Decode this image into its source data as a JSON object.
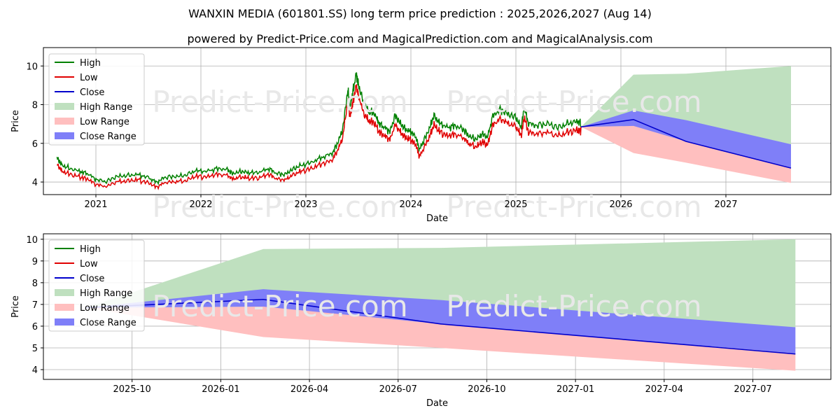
{
  "header": {
    "title": "WANXIN MEDIA (601801.SS) long term price prediction : 2025,2026,2027 (Aug 14)",
    "subtitle": "powered by Predict-Price.com and MagicalPrediction.com and MagicalAnalysis.com"
  },
  "watermark": "Predict-Price.com",
  "colors": {
    "high": "#008000",
    "low": "#e00000",
    "close": "#0000cc",
    "high_range": "#bfe0bf",
    "low_range": "#ffbfbf",
    "close_range": "#7f7ff8"
  },
  "chart_data": [
    {
      "type": "line",
      "xlabel": "Date",
      "ylabel": "Price",
      "xlim": [
        2020.5,
        2028.0
      ],
      "ylim": [
        3.35,
        10.95
      ],
      "xticks": [
        2021,
        2022,
        2023,
        2024,
        2025,
        2026,
        2027
      ],
      "xtick_labels": [
        "2021",
        "2022",
        "2023",
        "2024",
        "2025",
        "2026",
        "2027"
      ],
      "yticks": [
        4,
        6,
        8,
        10
      ],
      "grid": true,
      "legend": "top-left",
      "legend_entries": [
        "High",
        "Low",
        "Close",
        "High Range",
        "Low Range",
        "Close Range"
      ],
      "history_close": {
        "x": [
          2020.63,
          2020.67,
          2020.75,
          2020.85,
          2020.92,
          2021.0,
          2021.1,
          2021.2,
          2021.3,
          2021.4,
          2021.5,
          2021.58,
          2021.65,
          2021.75,
          2021.85,
          2021.95,
          2022.05,
          2022.15,
          2022.25,
          2022.3,
          2022.38,
          2022.45,
          2022.55,
          2022.65,
          2022.72,
          2022.8,
          2022.87,
          2022.95,
          2023.05,
          2023.15,
          2023.25,
          2023.3,
          2023.35,
          2023.4,
          2023.42,
          2023.45,
          2023.48,
          2023.5,
          2023.55,
          2023.6,
          2023.65,
          2023.7,
          2023.75,
          2023.8,
          2023.85,
          2023.9,
          2023.95,
          2024.0,
          2024.05,
          2024.08,
          2024.12,
          2024.18,
          2024.22,
          2024.28,
          2024.35,
          2024.42,
          2024.5,
          2024.55,
          2024.62,
          2024.68,
          2024.73,
          2024.78,
          2024.85,
          2024.92,
          2025.0,
          2025.05,
          2025.08,
          2025.12,
          2025.2,
          2025.3,
          2025.4,
          2025.5,
          2025.58,
          2025.62
        ],
        "values": [
          5.1,
          4.75,
          4.55,
          4.4,
          4.3,
          4.0,
          3.9,
          4.15,
          4.2,
          4.25,
          4.1,
          3.85,
          4.1,
          4.15,
          4.2,
          4.45,
          4.4,
          4.55,
          4.5,
          4.3,
          4.4,
          4.35,
          4.35,
          4.55,
          4.3,
          4.25,
          4.5,
          4.7,
          4.85,
          5.1,
          5.3,
          5.8,
          6.5,
          8.5,
          7.6,
          8.5,
          9.3,
          8.8,
          7.8,
          7.4,
          7.3,
          6.8,
          6.6,
          6.4,
          7.2,
          6.8,
          6.5,
          6.4,
          6.1,
          5.5,
          5.9,
          6.6,
          7.2,
          6.8,
          6.6,
          6.7,
          6.5,
          6.2,
          6.0,
          6.3,
          6.1,
          7.2,
          7.5,
          7.3,
          7.1,
          6.6,
          7.6,
          6.8,
          6.7,
          6.8,
          6.6,
          6.8,
          6.9,
          6.85
        ]
      },
      "forecast": {
        "x": [
          2025.62,
          2026.12,
          2026.62,
          2027.62
        ],
        "high_range": [
          [
            6.85,
            6.85
          ],
          [
            6.85,
            9.55
          ],
          [
            6.4,
            9.6
          ],
          [
            5.95,
            10.0
          ]
        ],
        "low_range": [
          [
            6.85,
            6.85
          ],
          [
            5.5,
            6.9
          ],
          [
            5.0,
            6.3
          ],
          [
            3.95,
            4.75
          ]
        ],
        "close_range": [
          [
            6.85,
            6.85
          ],
          [
            6.9,
            7.7
          ],
          [
            6.1,
            7.2
          ],
          [
            4.75,
            5.95
          ]
        ],
        "close": [
          6.85,
          7.23,
          6.1,
          4.72
        ]
      }
    },
    {
      "type": "line",
      "xlabel": "Date",
      "ylabel": "Price",
      "xlim": [
        2025.5,
        2027.72
      ],
      "ylim": [
        3.55,
        10.25
      ],
      "xticks": [
        2025.75,
        2026.0,
        2026.25,
        2026.5,
        2026.75,
        2027.0,
        2027.25,
        2027.5
      ],
      "xtick_labels": [
        "2025-10",
        "2026-01",
        "2026-04",
        "2026-07",
        "2026-10",
        "2027-01",
        "2027-04",
        "2027-07"
      ],
      "yticks": [
        4,
        5,
        6,
        7,
        8,
        9,
        10
      ],
      "grid": true,
      "legend": "top-left",
      "legend_entries": [
        "High",
        "Low",
        "Close",
        "High Range",
        "Low Range",
        "Close Range"
      ],
      "forecast": {
        "x": [
          2025.62,
          2026.12,
          2026.62,
          2027.62
        ],
        "high_range": [
          [
            6.85,
            6.85
          ],
          [
            6.85,
            9.55
          ],
          [
            6.4,
            9.6
          ],
          [
            5.95,
            10.0
          ]
        ],
        "low_range": [
          [
            6.85,
            6.85
          ],
          [
            5.5,
            6.9
          ],
          [
            5.0,
            6.3
          ],
          [
            3.95,
            4.75
          ]
        ],
        "close_range": [
          [
            6.85,
            6.85
          ],
          [
            6.9,
            7.7
          ],
          [
            6.1,
            7.2
          ],
          [
            4.75,
            5.95
          ]
        ],
        "close": [
          6.85,
          7.23,
          6.1,
          4.72
        ]
      }
    }
  ]
}
